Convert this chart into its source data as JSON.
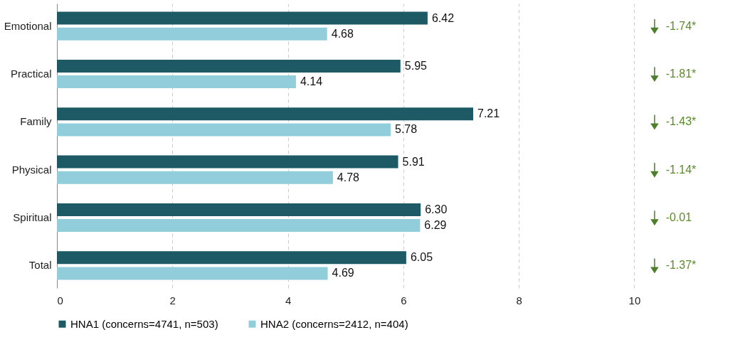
{
  "chart_data": {
    "type": "bar",
    "orientation": "horizontal",
    "categories": [
      "Emotional",
      "Practical",
      "Family",
      "Physical",
      "Spiritual",
      "Total"
    ],
    "series": [
      {
        "name": "HNA1 (concerns=4741, n=503)",
        "color": "#1d5a66",
        "values": [
          6.42,
          5.95,
          7.21,
          5.91,
          6.3,
          6.05
        ],
        "value_labels": [
          "6.42",
          "5.95",
          "7.21",
          "5.91",
          "6.30",
          "6.05"
        ]
      },
      {
        "name": "HNA2 (concerns=2412, n=404)",
        "color": "#92cddc",
        "values": [
          4.68,
          4.14,
          5.78,
          4.78,
          6.29,
          4.69
        ],
        "value_labels": [
          "4.68",
          "4.14",
          "5.78",
          "4.78",
          "6.29",
          "4.69"
        ]
      }
    ],
    "xlim": [
      0,
      11.4
    ],
    "xticks": [
      0,
      2,
      4,
      6,
      8,
      10
    ],
    "grid": "x",
    "legend": "bottom",
    "annotations": [
      "-1.74*",
      "-1.81*",
      "-1.43*",
      "-1.14*",
      "-0.01",
      "-1.37*"
    ]
  }
}
